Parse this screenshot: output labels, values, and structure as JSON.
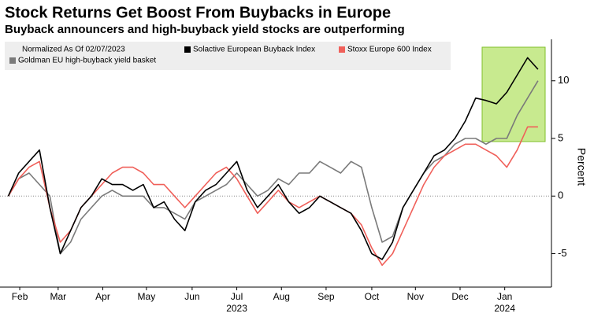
{
  "chart_data": {
    "type": "line",
    "title": "Stock Returns Get Boost From Buybacks in Europe",
    "subtitle": "Buyback announcers and high-buyback yield stocks are outperforming",
    "legend_title": "Normalized As Of 02/07/2023",
    "y_label": "Percent",
    "x": [
      0,
      1,
      2,
      3,
      4,
      5,
      6,
      7,
      8,
      9,
      10,
      11,
      12,
      13,
      14,
      15,
      16,
      17,
      18,
      19,
      20,
      21,
      22,
      23,
      24,
      25,
      26,
      27,
      28,
      29,
      30,
      31,
      32,
      33,
      34,
      35,
      36,
      37,
      38,
      39,
      40,
      41,
      42,
      43,
      44,
      45,
      46,
      47,
      48,
      49,
      50,
      51
    ],
    "series": [
      {
        "name": "Solactive European Buyback Index",
        "color": "#000000",
        "values": [
          0,
          2,
          3,
          4,
          -1,
          -5,
          -3,
          -1,
          0,
          1.5,
          1,
          1,
          0.5,
          1,
          -1,
          -0.5,
          -2,
          -3,
          -0.5,
          0.5,
          1,
          2,
          3,
          0.5,
          -1,
          0,
          1,
          -0.5,
          -1.5,
          -1,
          0,
          -0.5,
          -1,
          -1.5,
          -3,
          -5,
          -5.5,
          -4,
          -1,
          0.5,
          2,
          3.5,
          4,
          5,
          6.5,
          8.5,
          8.3,
          8,
          9,
          10.5,
          12,
          11
        ]
      },
      {
        "name": "Stoxx Europe 600 Index",
        "color": "#f0605a",
        "values": [
          0,
          1.5,
          2.5,
          3,
          -1,
          -4,
          -3,
          -1,
          0,
          1,
          2,
          2.5,
          2.5,
          2,
          1,
          1,
          0,
          -1,
          0,
          1,
          2,
          2.5,
          1.5,
          0,
          -1.5,
          -0.5,
          0.5,
          -0.5,
          -1,
          -0.5,
          0,
          -0.5,
          -1,
          -1.5,
          -2.5,
          -4.5,
          -6,
          -5,
          -3,
          -1,
          1,
          2.5,
          3.5,
          4,
          4.5,
          4.5,
          4,
          3.5,
          2.5,
          4,
          6,
          6
        ]
      },
      {
        "name": "Goldman EU high-buyback yield basket",
        "color": "#7a7a7a",
        "values": [
          0,
          1.5,
          2,
          1,
          0,
          -5,
          -4,
          -2,
          -1,
          0,
          0.5,
          0,
          0,
          0,
          -1,
          -1,
          -1.5,
          -2,
          -0.5,
          0,
          0.5,
          1,
          2,
          1,
          0,
          0.5,
          1.5,
          1,
          2,
          2,
          3,
          2.5,
          2,
          3,
          2.5,
          -1,
          -4,
          -3.5,
          -1,
          0.5,
          2,
          3,
          3.5,
          4.5,
          5,
          5,
          4.5,
          5,
          5,
          7,
          8.5,
          10
        ]
      }
    ],
    "xlim": [
      -0.8,
      52.3
    ],
    "xticks": [
      {
        "value": 1.1,
        "label": "Feb"
      },
      {
        "value": 4.8,
        "label": "Mar"
      },
      {
        "value": 9.1,
        "label": "Apr"
      },
      {
        "value": 13.3,
        "label": "May"
      },
      {
        "value": 17.7,
        "label": "Jun"
      },
      {
        "value": 22,
        "label": "Jul"
      },
      {
        "value": 26.3,
        "label": "Aug"
      },
      {
        "value": 30.6,
        "label": "Sep"
      },
      {
        "value": 35,
        "label": "Oct"
      },
      {
        "value": 39.2,
        "label": "Nov"
      },
      {
        "value": 43.5,
        "label": "Dec"
      },
      {
        "value": 47.8,
        "label": "Jan"
      }
    ],
    "year_labels": [
      {
        "value": 22,
        "label": "2023"
      },
      {
        "value": 47.8,
        "label": "2024"
      }
    ],
    "ylim": [
      -7.9,
      13.6
    ],
    "yticks": [
      -5,
      0,
      5,
      10
    ],
    "zero_line": true
  }
}
